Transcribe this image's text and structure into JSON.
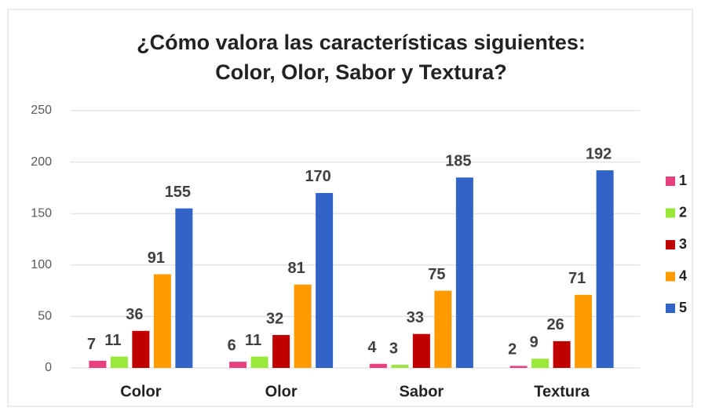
{
  "chart_data": {
    "type": "bar",
    "title": [
      "¿Cómo valora las características siguientes:",
      "Color, Olor, Sabor y Textura?"
    ],
    "categories": [
      "Color",
      "Olor",
      "Sabor",
      "Textura"
    ],
    "series": [
      {
        "name": "1",
        "color": "#e8407f",
        "values": [
          7,
          6,
          4,
          2
        ]
      },
      {
        "name": "2",
        "color": "#99e83a",
        "values": [
          11,
          11,
          3,
          9
        ]
      },
      {
        "name": "3",
        "color": "#c00000",
        "values": [
          36,
          32,
          33,
          26
        ]
      },
      {
        "name": "4",
        "color": "#ff9a00",
        "values": [
          91,
          81,
          75,
          71
        ]
      },
      {
        "name": "5",
        "color": "#3264c8",
        "values": [
          155,
          170,
          185,
          192
        ]
      }
    ],
    "ylim": [
      0,
      250
    ],
    "yticks": [
      0,
      50,
      100,
      150,
      200,
      250
    ],
    "grid": true,
    "legend": "right"
  }
}
